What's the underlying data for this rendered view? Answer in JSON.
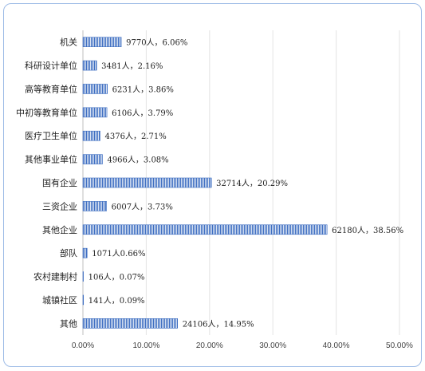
{
  "chart_data": {
    "type": "bar",
    "orientation": "horizontal",
    "title": "",
    "xlabel": "",
    "ylabel": "",
    "categories": [
      "机关",
      "科研设计单位",
      "高等教育单位",
      "中初等教育单位",
      "医疗卫生单位",
      "其他事业单位",
      "国有企业",
      "三资企业",
      "其他企业",
      "部队",
      "农村建制村",
      "城镇社区",
      "其他"
    ],
    "values": [
      6.06,
      2.16,
      3.86,
      3.79,
      2.71,
      3.08,
      20.29,
      3.73,
      38.56,
      0.66,
      0.07,
      0.09,
      14.95
    ],
    "counts": [
      9770,
      3481,
      6231,
      6106,
      4376,
      4966,
      32714,
      6007,
      62180,
      1071,
      106,
      141,
      24106
    ],
    "data_labels": [
      "9770人，6.06%",
      "3481人，2.16%",
      "6231人，3.86%",
      "6106人，3.79%",
      "4376人，2.71%",
      "4966人，3.08%",
      "32714人，20.29%",
      "6007人，3.73%",
      "62180人，38.56%",
      "1071人0.66%",
      "106人，0.07%",
      "141人，0.09%",
      "24106人，14.95%"
    ],
    "xlim": [
      0,
      50
    ],
    "x_ticks": [
      "0.00%",
      "10.00%",
      "20.00%",
      "30.00%",
      "40.00%",
      "50.00%"
    ],
    "grid": true,
    "legend": "none",
    "bar_color": "#3f6fc2"
  }
}
